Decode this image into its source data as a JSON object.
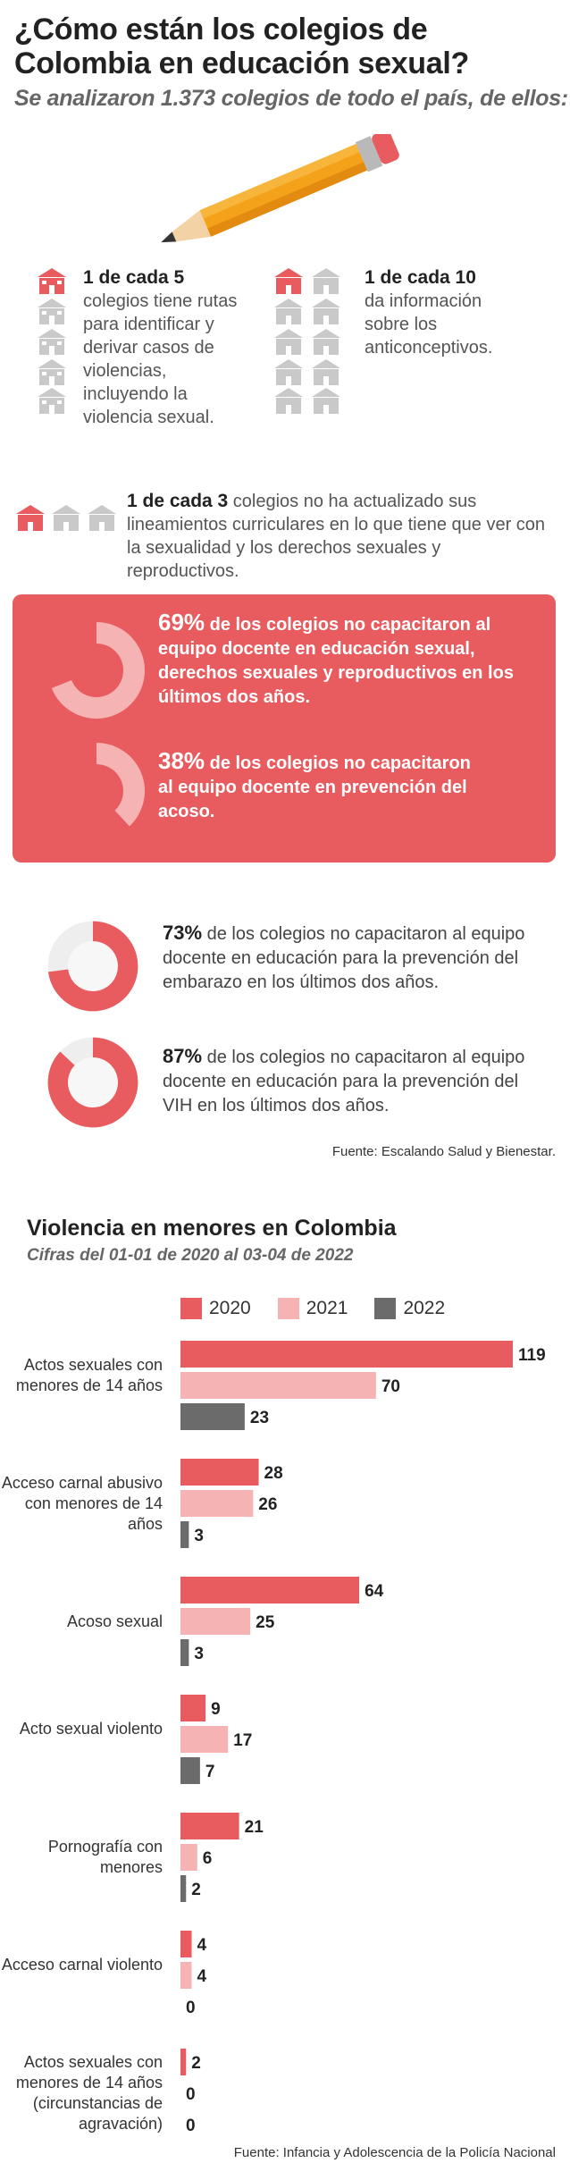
{
  "header": {
    "title": "¿Cómo están los colegios de Colombia en educación sexual?",
    "subtitle": "Se analizaron 1.373 colegios de todo el país, de ellos:"
  },
  "stats": {
    "s1": {
      "highlight": "1 de cada 5",
      "text": "colegios tiene rutas para identificar y derivar casos de violencias, incluyendo la violencia sexual."
    },
    "s2": {
      "highlight": "1 de cada 10",
      "text": "da información sobre los anticonceptivos."
    },
    "s3": {
      "highlight": "1 de cada 3",
      "text": " colegios no ha actualizado sus lineamientos curriculares en lo que tiene que ver con la sexualidad y los derechos sexuales y reproductivos."
    }
  },
  "donuts": [
    {
      "pct_label": "69%",
      "value": 69,
      "text": " de los colegios no capacitaron al equipo docente en educación sexual, derechos sexuales y reproductivos en los últimos dos años."
    },
    {
      "pct_label": "38%",
      "value": 38,
      "text": " de los colegios no capacitaron al equipo docente en prevención del acoso."
    },
    {
      "pct_label": "73%",
      "value": 73,
      "text": " de los colegios no capacitaron al equipo docente en educación para la prevención del embarazo en los últimos dos años."
    },
    {
      "pct_label": "87%",
      "value": 87,
      "text": " de los colegios no capacitaron al equipo docente en educación para la prevención del VIH en los últimos dos años."
    }
  ],
  "source1": "Fuente: Escalando Salud y Bienestar.",
  "colors": {
    "y2020": "#e85b5f",
    "y2021": "#f5b3b4",
    "y2022": "#6b6b6b",
    "box": "#e85b5f"
  },
  "chart_data": {
    "type": "bar",
    "title": "Violencia en menores en Colombia",
    "subtitle": "Cifras del 01-01 de 2020 al 03-04 de 2022",
    "categories": [
      "Actos sexuales con menores de 14 años",
      "Acceso carnal abusivo con menores de 14 años",
      "Acoso sexual",
      "Acto sexual violento",
      "Pornografía con menores",
      "Acceso carnal violento",
      "Actos sexuales con menores de 14 años (circunstancias de agravación)"
    ],
    "series": [
      {
        "name": "2020",
        "values": [
          119,
          28,
          64,
          9,
          21,
          4,
          2
        ]
      },
      {
        "name": "2021",
        "values": [
          70,
          26,
          25,
          17,
          6,
          4,
          0
        ]
      },
      {
        "name": "2022",
        "values": [
          23,
          3,
          3,
          7,
          2,
          0,
          0
        ]
      }
    ],
    "source": "Fuente: Infancia y Adolescencia de la Policía Nacional"
  }
}
